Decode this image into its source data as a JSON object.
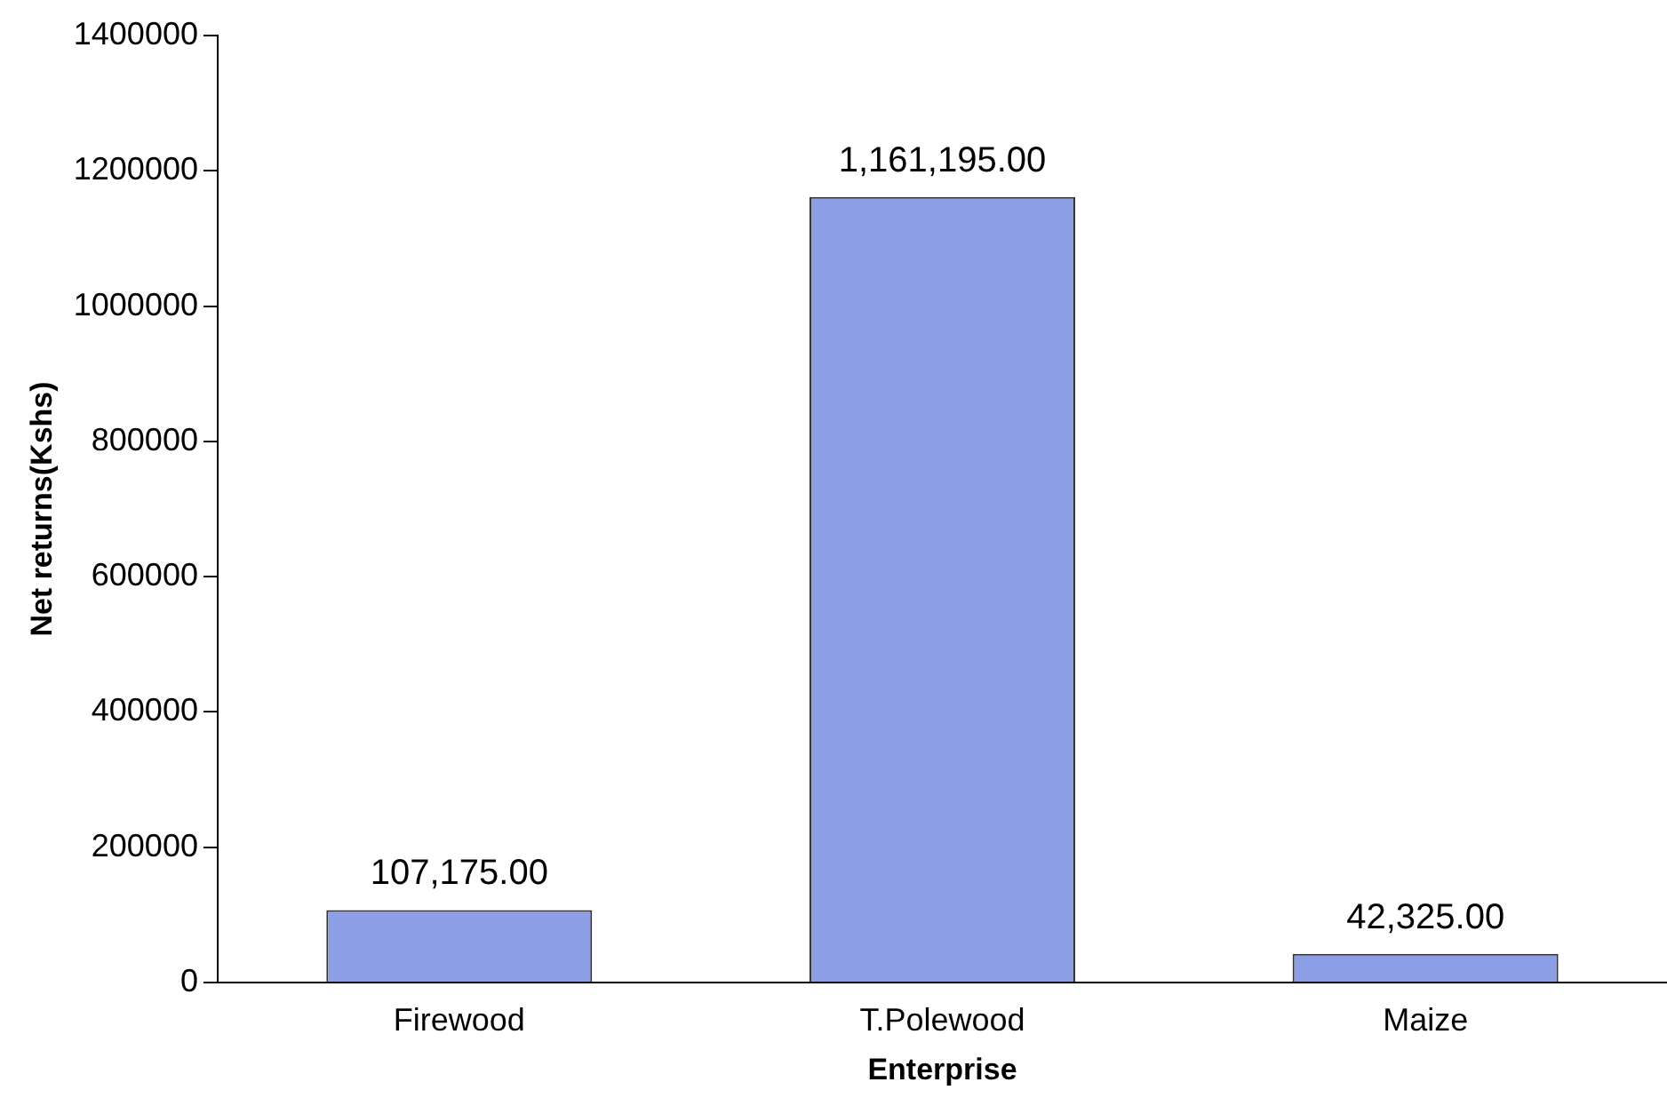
{
  "chart_data": {
    "type": "bar",
    "xlabel": "Enterprise",
    "ylabel": "Net returns(Kshs)",
    "categories": [
      "Firewood",
      "T.Polewood",
      "Maize"
    ],
    "values": [
      107175,
      1161195,
      42325
    ],
    "value_labels": [
      "107,175.00",
      "1,161,195.00",
      "42,325.00"
    ],
    "color": "#8c9ee6",
    "ylim": [
      0,
      1400000
    ],
    "yticks": [
      0,
      200000,
      400000,
      600000,
      800000,
      1000000,
      1200000,
      1400000
    ],
    "grid": false,
    "legend": false
  }
}
